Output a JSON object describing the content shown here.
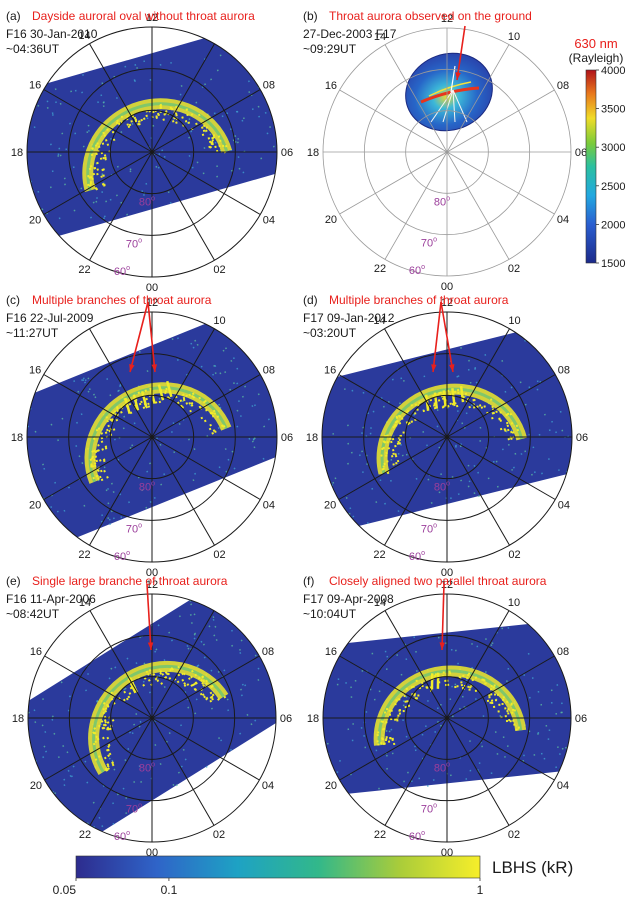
{
  "colors": {
    "annotation": "#e8201c",
    "latitude_label": "#9b3e9b",
    "grid": "#1a1a1a",
    "swath_background": "#2b3a9c",
    "aurora": "#f1ec2a"
  },
  "hour_labels": [
    "12",
    "14",
    "16",
    "18",
    "20",
    "22",
    "00",
    "02",
    "04",
    "06",
    "08",
    "10"
  ],
  "latitude_labels": [
    "80",
    "70",
    "60"
  ],
  "degree_symbol": "o",
  "panels": [
    {
      "letter": "(a)",
      "title": "Dayside auroral oval without throat aurora",
      "info_line1": "F16  30-Jan-2010",
      "info_line2": "~04:36UT",
      "rotation_deg": -16,
      "visible_hours": [
        "12",
        "14",
        "16",
        "18",
        "20",
        "22",
        "00",
        "02",
        "04",
        "06",
        "08"
      ]
    },
    {
      "letter": "(b)",
      "title": "Throat aurora observed on the ground",
      "info_line1": "27-Dec-2003  F17",
      "info_line2": "~09:29UT",
      "rotation_deg": 0,
      "visible_hours": [
        "12",
        "14",
        "16",
        "18",
        "20",
        "22",
        "00",
        "02",
        "04",
        "06",
        "08",
        "10"
      ]
    },
    {
      "letter": "(c)",
      "title": "Multiple branches of throat aurora",
      "info_line1": "F16  22-Jul-2009",
      "info_line2": "~11:27UT",
      "rotation_deg": -22,
      "visible_hours": [
        "12",
        "16",
        "18",
        "20",
        "22",
        "00",
        "02",
        "04",
        "06",
        "08",
        "10"
      ]
    },
    {
      "letter": "(d)",
      "title": "Multiple branches of throat aurora",
      "info_line1": "F17  09-Jan-2012",
      "info_line2": "~03:20UT",
      "rotation_deg": -14,
      "visible_hours": [
        "12",
        "14",
        "16",
        "18",
        "20",
        "22",
        "00",
        "02",
        "04",
        "06",
        "08",
        "10"
      ]
    },
    {
      "letter": "(e)",
      "title": "Single large branche of throat aurora",
      "info_line1": "F16  11-Apr-2006",
      "info_line2": "~08:42UT",
      "rotation_deg": -32,
      "visible_hours": [
        "12",
        "14",
        "16",
        "18",
        "20",
        "22",
        "00",
        "02",
        "04",
        "06",
        "08"
      ]
    },
    {
      "letter": "(f)",
      "title": "Closely aligned two parallel throat aurora",
      "info_line1": "F17  09-Apr-2008",
      "info_line2": "~10:04UT",
      "rotation_deg": -6,
      "visible_hours": [
        "12",
        "14",
        "16",
        "18",
        "20",
        "22",
        "00",
        "02",
        "04",
        "06",
        "08",
        "10"
      ]
    }
  ],
  "colorbar_630": {
    "title_line1": "630 nm",
    "title_line2": "(Rayleigh)",
    "ticks": [
      "4000",
      "3500",
      "3000",
      "2500",
      "2000",
      "1500"
    ]
  },
  "colorbar_lbhs": {
    "title": "LBHS (kR)",
    "ticks": [
      "0.05",
      "0.1",
      "1"
    ]
  }
}
